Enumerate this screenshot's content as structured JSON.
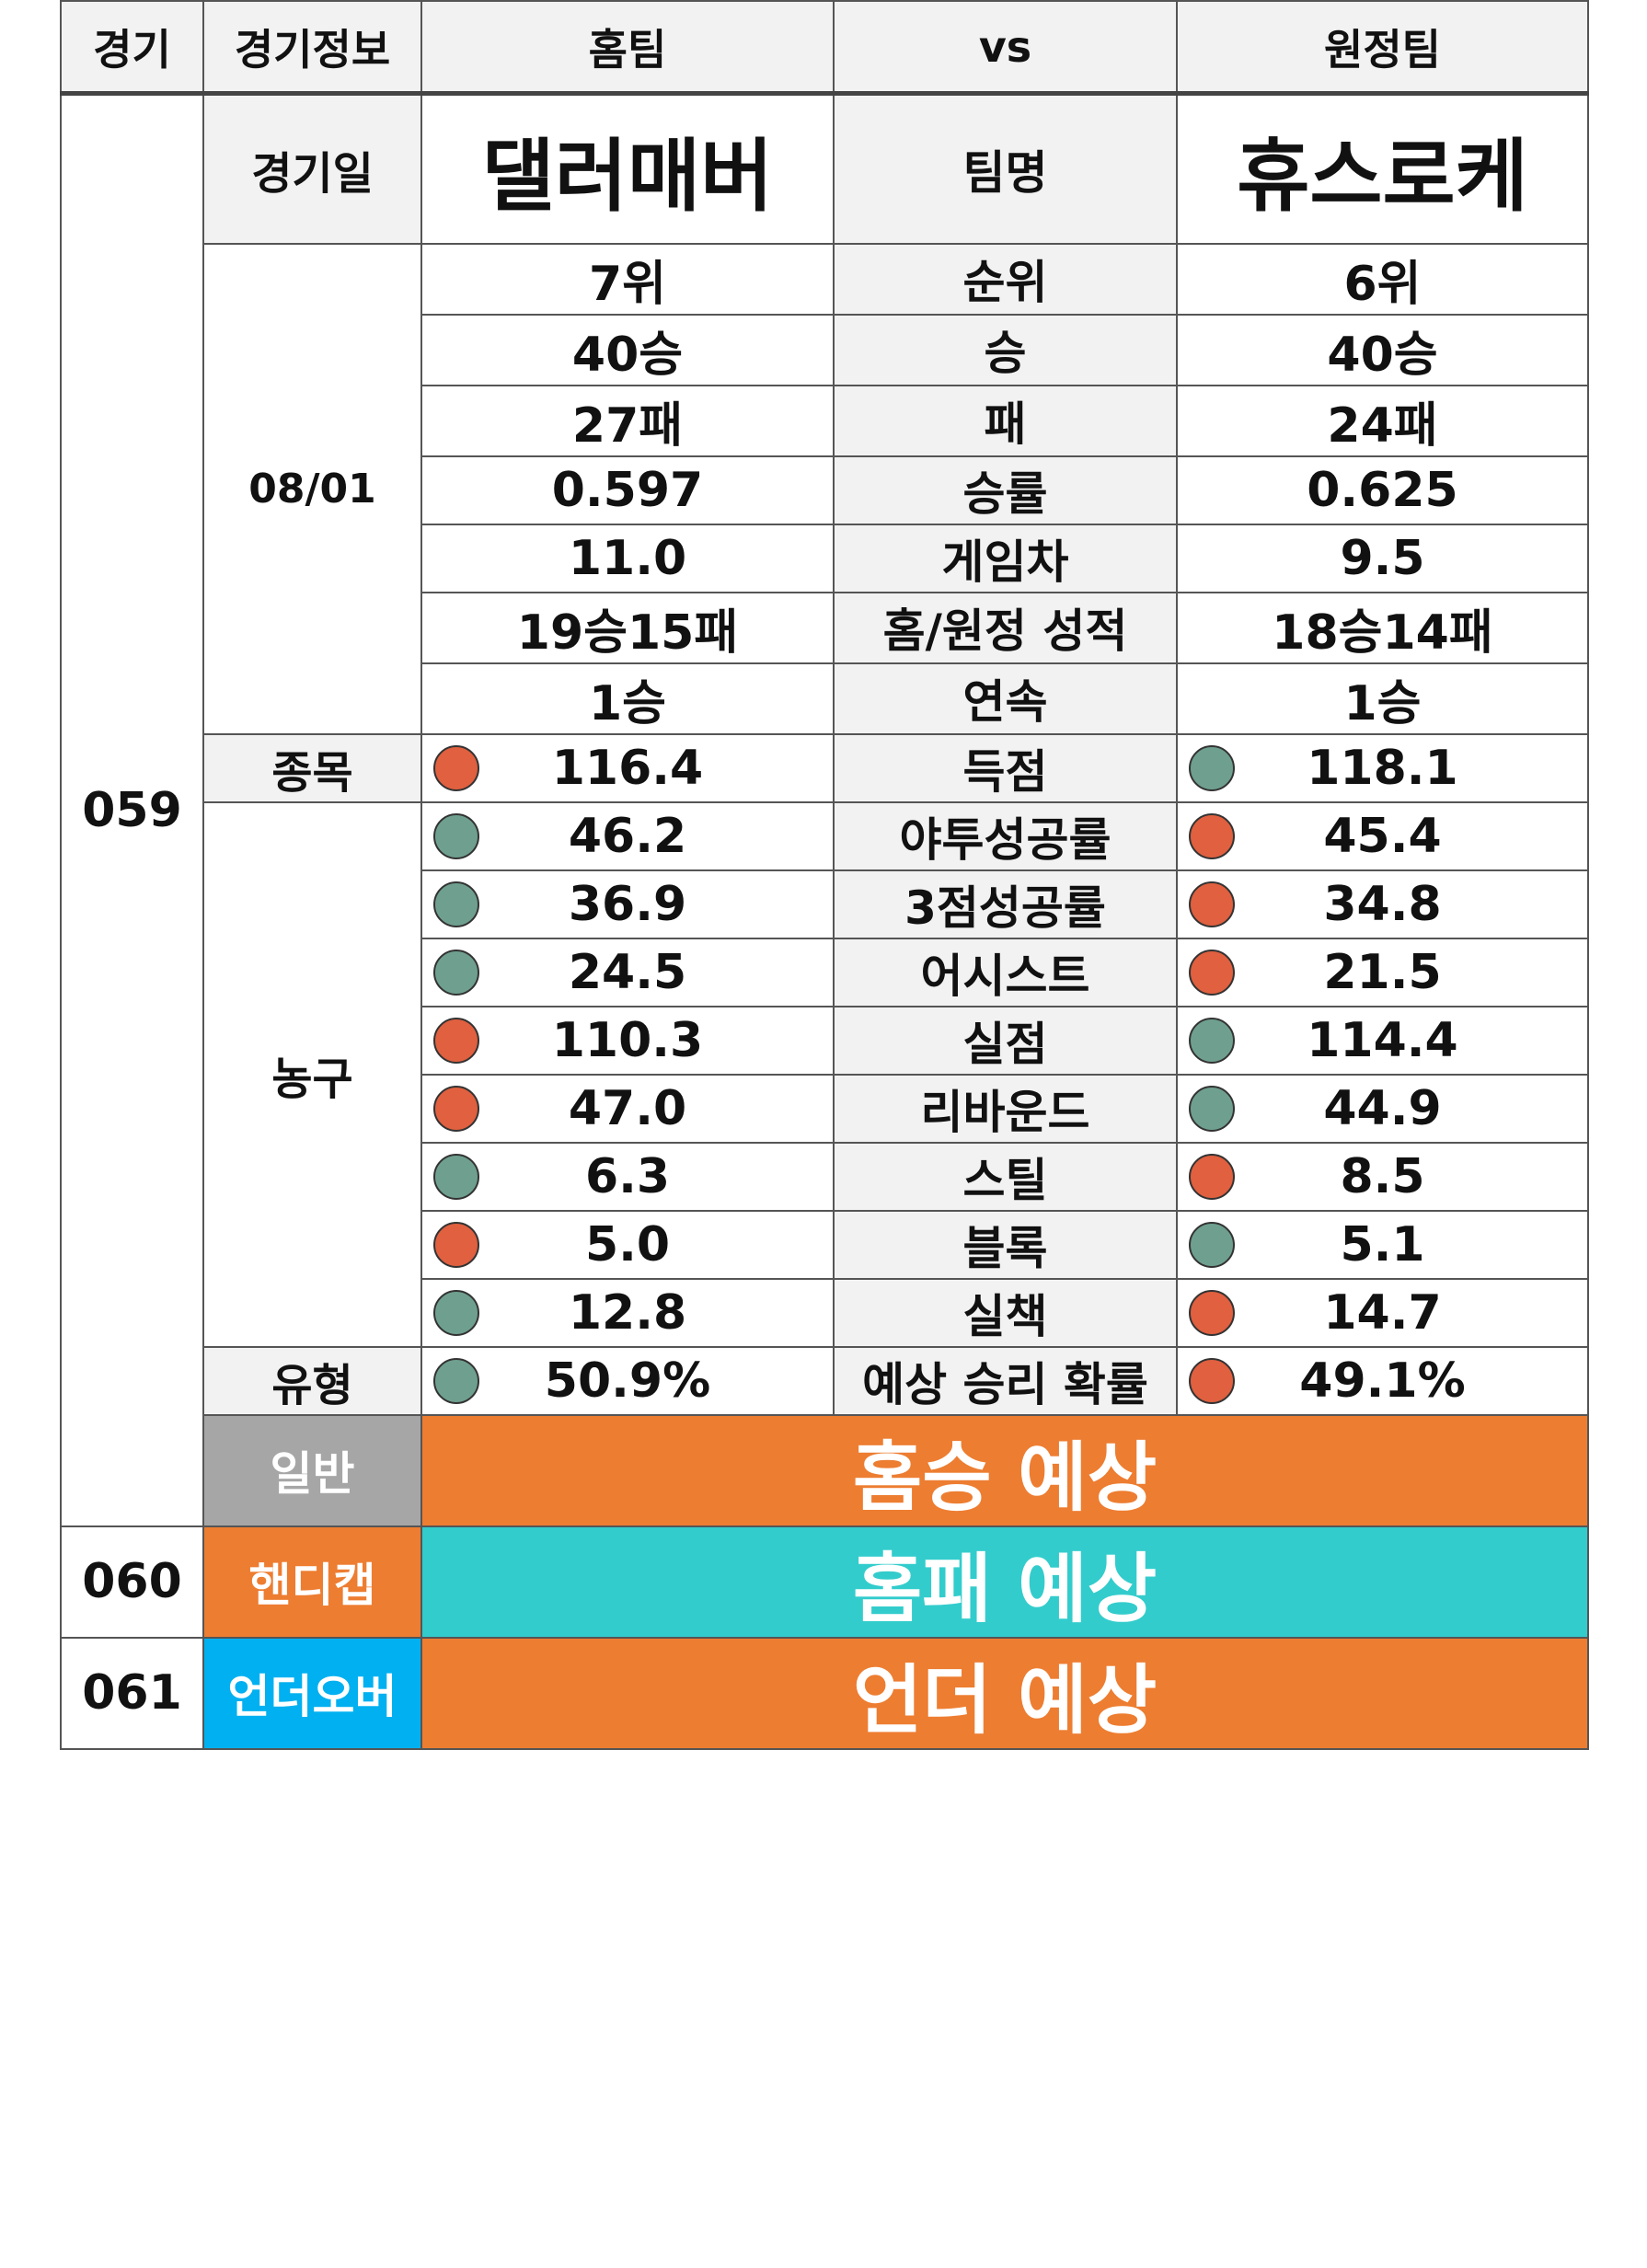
{
  "header": {
    "game": "경기",
    "info": "경기정보",
    "home": "홈팀",
    "vs": "vs",
    "away": "원정팀"
  },
  "match": {
    "game_no": "059",
    "date_label": "경기일",
    "date": "08/01",
    "sport_label": "종목",
    "sport": "농구",
    "type_label": "유형",
    "team_label": "팀명",
    "home_team": "댈러매버",
    "away_team": "휴스로케"
  },
  "records": [
    {
      "label": "순위",
      "home": "7위",
      "away": "6위"
    },
    {
      "label": "승",
      "home": "40승",
      "away": "40승"
    },
    {
      "label": "패",
      "home": "27패",
      "away": "24패"
    },
    {
      "label": "승률",
      "home": "0.597",
      "away": "0.625"
    },
    {
      "label": "게임차",
      "home": "11.0",
      "away": "9.5"
    },
    {
      "label": "홈/원정 성적",
      "home": "19승15패",
      "away": "18승14패"
    },
    {
      "label": "연속",
      "home": "1승",
      "away": "1승"
    }
  ],
  "stats": [
    {
      "label": "득점",
      "home": "116.4",
      "away": "118.1",
      "home_dot": "red",
      "away_dot": "green"
    },
    {
      "label": "야투성공률",
      "home": "46.2",
      "away": "45.4",
      "home_dot": "green",
      "away_dot": "red"
    },
    {
      "label": "3점성공률",
      "home": "36.9",
      "away": "34.8",
      "home_dot": "green",
      "away_dot": "red"
    },
    {
      "label": "어시스트",
      "home": "24.5",
      "away": "21.5",
      "home_dot": "green",
      "away_dot": "red"
    },
    {
      "label": "실점",
      "home": "110.3",
      "away": "114.4",
      "home_dot": "red",
      "away_dot": "green"
    },
    {
      "label": "리바운드",
      "home": "47.0",
      "away": "44.9",
      "home_dot": "red",
      "away_dot": "green"
    },
    {
      "label": "스틸",
      "home": "6.3",
      "away": "8.5",
      "home_dot": "green",
      "away_dot": "red"
    },
    {
      "label": "블록",
      "home": "5.0",
      "away": "5.1",
      "home_dot": "red",
      "away_dot": "green"
    },
    {
      "label": "실책",
      "home": "12.8",
      "away": "14.7",
      "home_dot": "green",
      "away_dot": "red"
    },
    {
      "label": "예상 승리 확률",
      "home": "50.9%",
      "away": "49.1%",
      "home_dot": "green",
      "away_dot": "red"
    }
  ],
  "predictions": [
    {
      "game_no": "",
      "label": "일반",
      "result": "홈승 예상",
      "label_bg": "#a6a6a6",
      "result_bg": "#ed7d31"
    },
    {
      "game_no": "060",
      "label": "핸디캡",
      "result": "홈패 예상",
      "label_bg": "#ed7d31",
      "result_bg": "#33cccc"
    },
    {
      "game_no": "061",
      "label": "언더오버",
      "result": "언더 예상",
      "label_bg": "#00b0f0",
      "result_bg": "#ed7d31"
    }
  ],
  "colors": {
    "red_dot": "#e0603f",
    "green_dot": "#6fa08f",
    "header_bg": "#f2f2f2"
  }
}
